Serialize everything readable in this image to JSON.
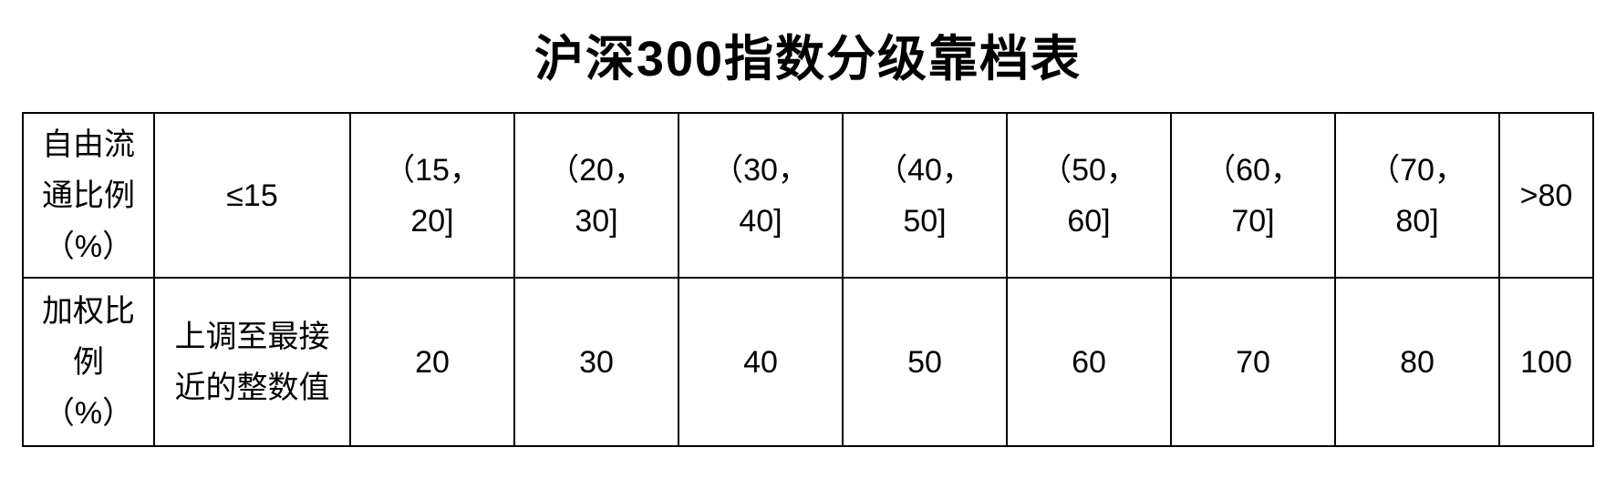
{
  "page": {
    "background_color": "#ffffff",
    "text_color": "#000000",
    "border_color": "#000000"
  },
  "title": "沪深300指数分级靠档表",
  "table": {
    "row_free_float": {
      "header": "自由流\n通比例\n（%）",
      "cells": [
        "≤15",
        "（15，\n20]",
        "（20，\n30]",
        "（30，\n40]",
        "（40，\n50]",
        "（50，\n60]",
        "（60，\n70]",
        "（70，\n80]",
        ">80"
      ]
    },
    "row_weight": {
      "header": "加权比\n例\n（%）",
      "cells": [
        "上调至最接\n近的整数值",
        "20",
        "30",
        "40",
        "50",
        "60",
        "70",
        "80",
        "100"
      ]
    }
  }
}
